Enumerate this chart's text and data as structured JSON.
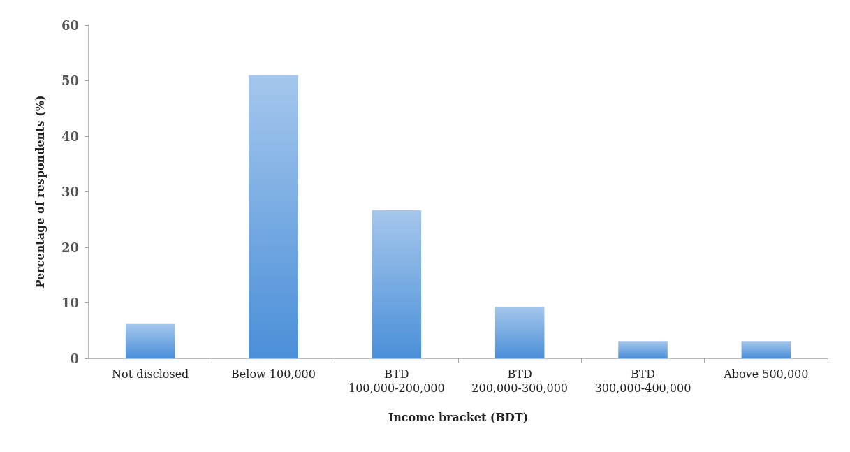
{
  "chart_data": {
    "type": "bar",
    "xlabel": "Income bracket (BDT)",
    "ylabel": "Percentage of respondents (%)",
    "categories": [
      "Not disclosed",
      "Below 100,000",
      "BTD 100,000-200,000",
      "BTD 200,000-300,000",
      "BTD 300,000-400,000",
      "Above 500,000"
    ],
    "values": [
      6.2,
      51,
      26.7,
      9.3,
      3.1,
      3.1
    ],
    "color": "#4a8fd9",
    "ylim": [
      0,
      60
    ],
    "yticks": [
      0,
      10,
      20,
      30,
      40,
      50,
      60
    ]
  }
}
